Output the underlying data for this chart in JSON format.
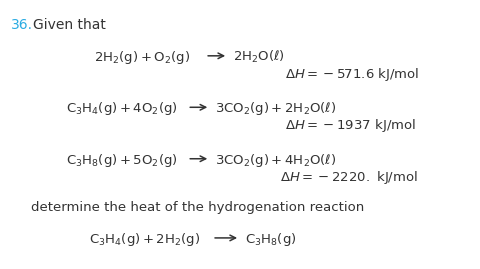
{
  "background_color": "#ffffff",
  "number_color": "#29ABE2",
  "text_color": "#333333",
  "figsize": [
    4.8,
    2.69
  ],
  "dpi": 100,
  "number": "36.",
  "given_text": "Given that",
  "determine_text": "determine the heat of the hydrogenation reaction",
  "eq1_left": "$\\mathregular{2H_2(g) + O_2(g)}$",
  "eq1_right": "$\\mathregular{2H_2O(\\ell)}$",
  "eq1_dh": "$\\Delta H = -571.6\\ \\mathregular{kJ/mol}$",
  "eq2_left": "$\\mathregular{C_3H_4(g) + 4O_2(g)}$",
  "eq2_right": "$\\mathregular{3CO_2(g) + 2H_2O(\\ell)}$",
  "eq2_dh": "$\\Delta H = -1937\\ \\mathregular{kJ/mol}$",
  "eq3_left": "$\\mathregular{C_3H_8(g) + 5O_2(g)}$",
  "eq3_right": "$\\mathregular{3CO_2(g) + 4H_2O(\\ell)}$",
  "eq3_dh": "$\\Delta H = -2220.\\ \\mathregular{kJ/mol}$",
  "eq4_left": "$\\mathregular{C_3H_4(g) + 2H_2(g)}$",
  "eq4_right": "$\\mathregular{C_3H_8(g)}$"
}
